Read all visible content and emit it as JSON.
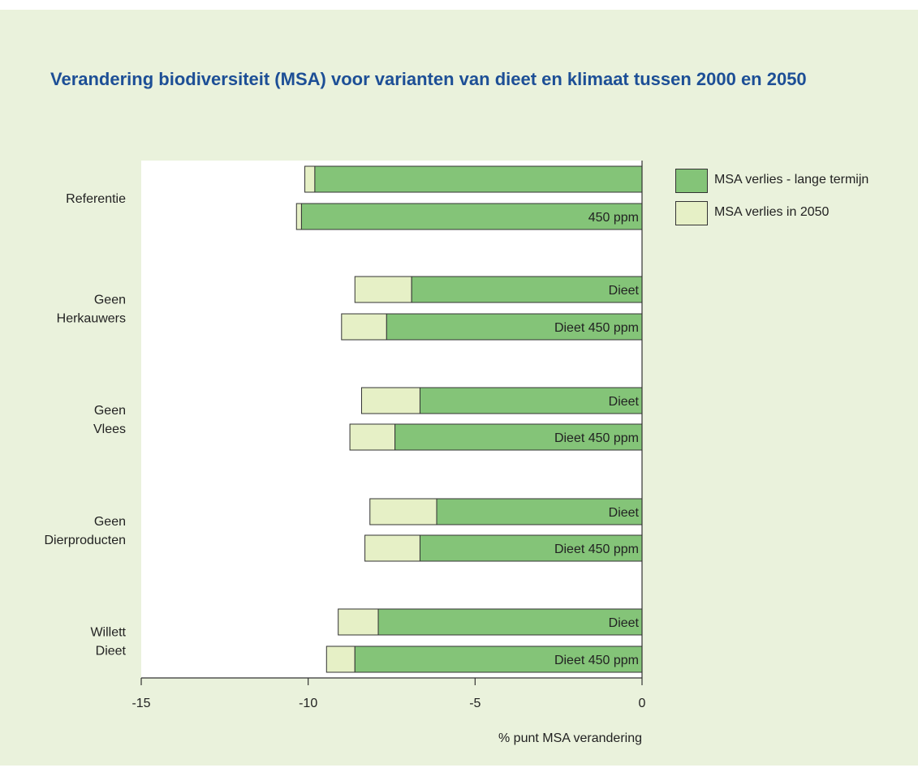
{
  "title": "Verandering biodiversiteit (MSA) voor varianten van dieet en klimaat tussen 2000 en 2050",
  "colors": {
    "background": "#eaf2dc",
    "plot_area": "#ffffff",
    "title": "#1d4f96",
    "long_term": "#84c478",
    "in_2050": "#e6f0c6",
    "outline": "#333333"
  },
  "chart_data": {
    "type": "bar",
    "orientation": "horizontal",
    "stacked": true,
    "xlabel": "% punt MSA verandering",
    "xlim": [
      -15,
      0
    ],
    "xticks": [
      "-15",
      "-10",
      "-5",
      "0"
    ],
    "xtick_values": [
      -15,
      -10,
      -5,
      0
    ],
    "legend_position": "top-right",
    "groups": [
      {
        "label": [
          "Referentie"
        ],
        "bars": [
          {
            "label": "",
            "long_term": -9.8,
            "in_2050": -10.1
          },
          {
            "label": "450 ppm",
            "long_term": -10.2,
            "in_2050": -10.35
          }
        ]
      },
      {
        "label": [
          "Geen",
          "Herkauwers"
        ],
        "bars": [
          {
            "label": "Dieet",
            "long_term": -6.9,
            "in_2050": -8.6
          },
          {
            "label": "Dieet 450 ppm",
            "long_term": -7.65,
            "in_2050": -9.0
          }
        ]
      },
      {
        "label": [
          "Geen",
          "Vlees"
        ],
        "bars": [
          {
            "label": "Dieet",
            "long_term": -6.65,
            "in_2050": -8.4
          },
          {
            "label": "Dieet 450 ppm",
            "long_term": -7.4,
            "in_2050": -8.75
          }
        ]
      },
      {
        "label": [
          "Geen",
          "Dierproducten"
        ],
        "bars": [
          {
            "label": "Dieet",
            "long_term": -6.15,
            "in_2050": -8.15
          },
          {
            "label": "Dieet 450 ppm",
            "long_term": -6.65,
            "in_2050": -8.3
          }
        ]
      },
      {
        "label": [
          "Willett",
          "Dieet"
        ],
        "bars": [
          {
            "label": "Dieet",
            "long_term": -7.9,
            "in_2050": -9.1
          },
          {
            "label": "Dieet 450 ppm",
            "long_term": -8.6,
            "in_2050": -9.45
          }
        ]
      }
    ],
    "series": [
      {
        "name": "MSA verlies - lange termijn",
        "key": "long_term"
      },
      {
        "name": "MSA verlies in 2050",
        "key": "in_2050"
      }
    ]
  }
}
